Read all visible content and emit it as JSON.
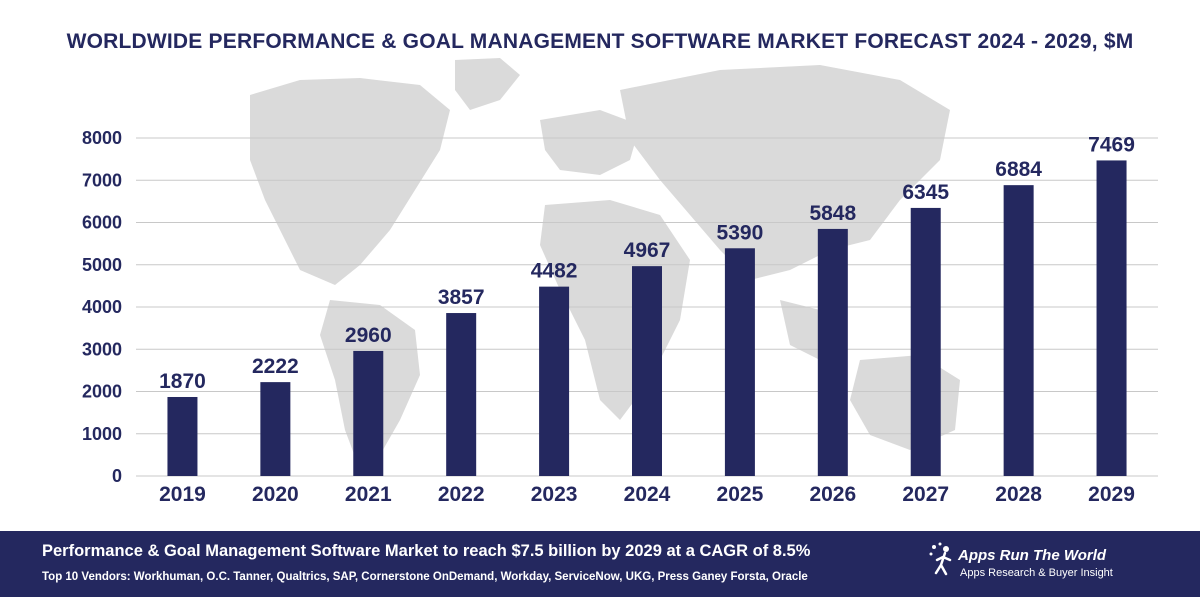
{
  "chart_data": {
    "type": "bar",
    "title": "WORLDWIDE PERFORMANCE & GOAL MANAGEMENT SOFTWARE MARKET FORECAST 2024 - 2029, $M",
    "categories": [
      "2019",
      "2020",
      "2021",
      "2022",
      "2023",
      "2024",
      "2025",
      "2026",
      "2027",
      "2028",
      "2029"
    ],
    "values": [
      1870,
      2222,
      2960,
      3857,
      4482,
      4967,
      5390,
      5848,
      6345,
      6884,
      7469
    ],
    "xlabel": "",
    "ylabel": "",
    "ylim": [
      0,
      8000
    ],
    "yticks": [
      "0",
      "1000",
      "2000",
      "3000",
      "4000",
      "5000",
      "6000",
      "7000",
      "8000"
    ],
    "grid": true,
    "bar_color": "#24285f",
    "text_color": "#24285f"
  },
  "footer": {
    "headline": "Performance & Goal Management Software Market to reach $7.5 billion by 2029 at a CAGR of 8.5%",
    "vendors": "Top 10 Vendors: Workhuman, O.C. Tanner, Qualtrics, SAP, Cornerstone OnDemand, Workday, ServiceNow, UKG, Press Ganey Forsta, Oracle",
    "background": "#24285f"
  },
  "logo": {
    "name": "Apps Run The World",
    "tagline": "Apps Research & Buyer Insight"
  }
}
